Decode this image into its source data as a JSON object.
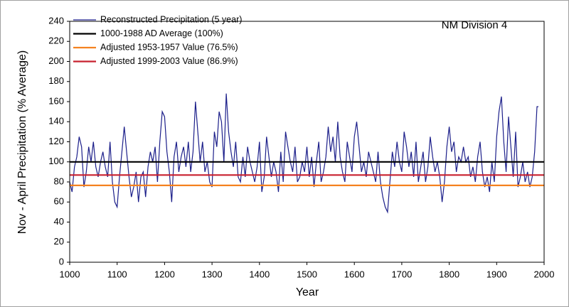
{
  "chart_data": {
    "type": "line",
    "title": "NM Division 4",
    "x_label": "Year",
    "y_label": "Nov - April Precipitation (% Average)",
    "xlim": [
      1000,
      2000
    ],
    "xticks": [
      1000,
      1100,
      1200,
      1300,
      1400,
      1500,
      1600,
      1700,
      1800,
      1900,
      2000
    ],
    "ylim": [
      0,
      240
    ],
    "yticks": [
      0,
      20,
      40,
      60,
      80,
      100,
      120,
      140,
      160,
      180,
      200,
      220,
      240
    ],
    "legend": "upper left",
    "series": [
      {
        "name": "Reconstructed Precipitation (5 year)",
        "color": "#1c1f8a",
        "x": [
          1000,
          1005,
          1010,
          1015,
          1020,
          1025,
          1030,
          1035,
          1040,
          1045,
          1050,
          1055,
          1060,
          1065,
          1070,
          1075,
          1080,
          1085,
          1090,
          1095,
          1100,
          1105,
          1110,
          1115,
          1120,
          1125,
          1130,
          1135,
          1140,
          1145,
          1150,
          1155,
          1160,
          1165,
          1170,
          1175,
          1180,
          1185,
          1190,
          1195,
          1200,
          1205,
          1210,
          1215,
          1220,
          1225,
          1230,
          1235,
          1240,
          1245,
          1250,
          1255,
          1260,
          1265,
          1270,
          1275,
          1280,
          1285,
          1290,
          1295,
          1300,
          1305,
          1310,
          1315,
          1320,
          1325,
          1330,
          1335,
          1340,
          1345,
          1350,
          1355,
          1360,
          1365,
          1370,
          1375,
          1380,
          1385,
          1390,
          1395,
          1400,
          1405,
          1410,
          1415,
          1420,
          1425,
          1430,
          1435,
          1440,
          1445,
          1450,
          1455,
          1460,
          1465,
          1470,
          1475,
          1480,
          1485,
          1490,
          1495,
          1500,
          1505,
          1510,
          1515,
          1520,
          1525,
          1530,
          1535,
          1540,
          1545,
          1550,
          1555,
          1560,
          1565,
          1570,
          1575,
          1580,
          1585,
          1590,
          1595,
          1600,
          1605,
          1610,
          1615,
          1620,
          1625,
          1630,
          1635,
          1640,
          1645,
          1650,
          1655,
          1660,
          1665,
          1670,
          1675,
          1680,
          1685,
          1690,
          1695,
          1700,
          1705,
          1710,
          1715,
          1720,
          1725,
          1730,
          1735,
          1740,
          1745,
          1750,
          1755,
          1760,
          1765,
          1770,
          1775,
          1780,
          1785,
          1790,
          1795,
          1800,
          1805,
          1810,
          1815,
          1820,
          1825,
          1830,
          1835,
          1840,
          1845,
          1850,
          1855,
          1860,
          1865,
          1870,
          1875,
          1880,
          1885,
          1890,
          1895,
          1900,
          1905,
          1910,
          1915,
          1920,
          1925,
          1930,
          1935,
          1940,
          1945,
          1950,
          1955,
          1960,
          1965,
          1970,
          1975,
          1980,
          1985,
          1988
        ],
        "values": [
          80,
          70,
          95,
          105,
          125,
          115,
          75,
          90,
          115,
          100,
          120,
          95,
          85,
          100,
          110,
          95,
          85,
          120,
          80,
          60,
          55,
          85,
          110,
          135,
          110,
          85,
          65,
          75,
          90,
          60,
          85,
          90,
          65,
          95,
          110,
          100,
          115,
          80,
          120,
          150,
          145,
          110,
          90,
          60,
          105,
          120,
          90,
          105,
          115,
          95,
          120,
          90,
          110,
          160,
          130,
          100,
          120,
          90,
          100,
          80,
          75,
          130,
          115,
          150,
          140,
          100,
          168,
          130,
          110,
          95,
          120,
          85,
          80,
          105,
          85,
          115,
          100,
          90,
          80,
          95,
          120,
          70,
          85,
          125,
          105,
          85,
          100,
          90,
          70,
          110,
          80,
          130,
          115,
          100,
          90,
          115,
          80,
          85,
          100,
          90,
          115,
          85,
          105,
          75,
          100,
          120,
          80,
          90,
          105,
          135,
          110,
          125,
          100,
          140,
          105,
          90,
          80,
          120,
          105,
          90,
          125,
          140,
          115,
          90,
          100,
          85,
          110,
          100,
          90,
          80,
          110,
          80,
          65,
          55,
          50,
          80,
          110,
          95,
          120,
          100,
          90,
          130,
          115,
          95,
          110,
          85,
          120,
          80,
          95,
          110,
          80,
          95,
          125,
          105,
          90,
          100,
          85,
          60,
          80,
          115,
          135,
          110,
          120,
          90,
          105,
          100,
          115,
          100,
          105,
          85,
          95,
          80,
          105,
          120,
          90,
          75,
          85,
          70,
          100,
          80,
          125,
          150,
          165,
          120,
          90,
          145,
          115,
          85,
          130,
          75,
          85,
          100,
          80,
          90,
          75,
          85,
          110,
          155,
          155
        ]
      },
      {
        "name": "1000-1988 AD Average (100%)",
        "color": "#000000",
        "x": [
          1000,
          2000
        ],
        "values": [
          100,
          100
        ]
      },
      {
        "name": "Adjusted 1953-1957 Value (76.5%)",
        "color": "#f58220",
        "x": [
          1000,
          2000
        ],
        "values": [
          76.5,
          76.5
        ]
      },
      {
        "name": "Adjusted 1999-2003 Value (86.9%)",
        "color": "#c8202f",
        "x": [
          1000,
          2000
        ],
        "values": [
          86.9,
          86.9
        ]
      }
    ]
  }
}
